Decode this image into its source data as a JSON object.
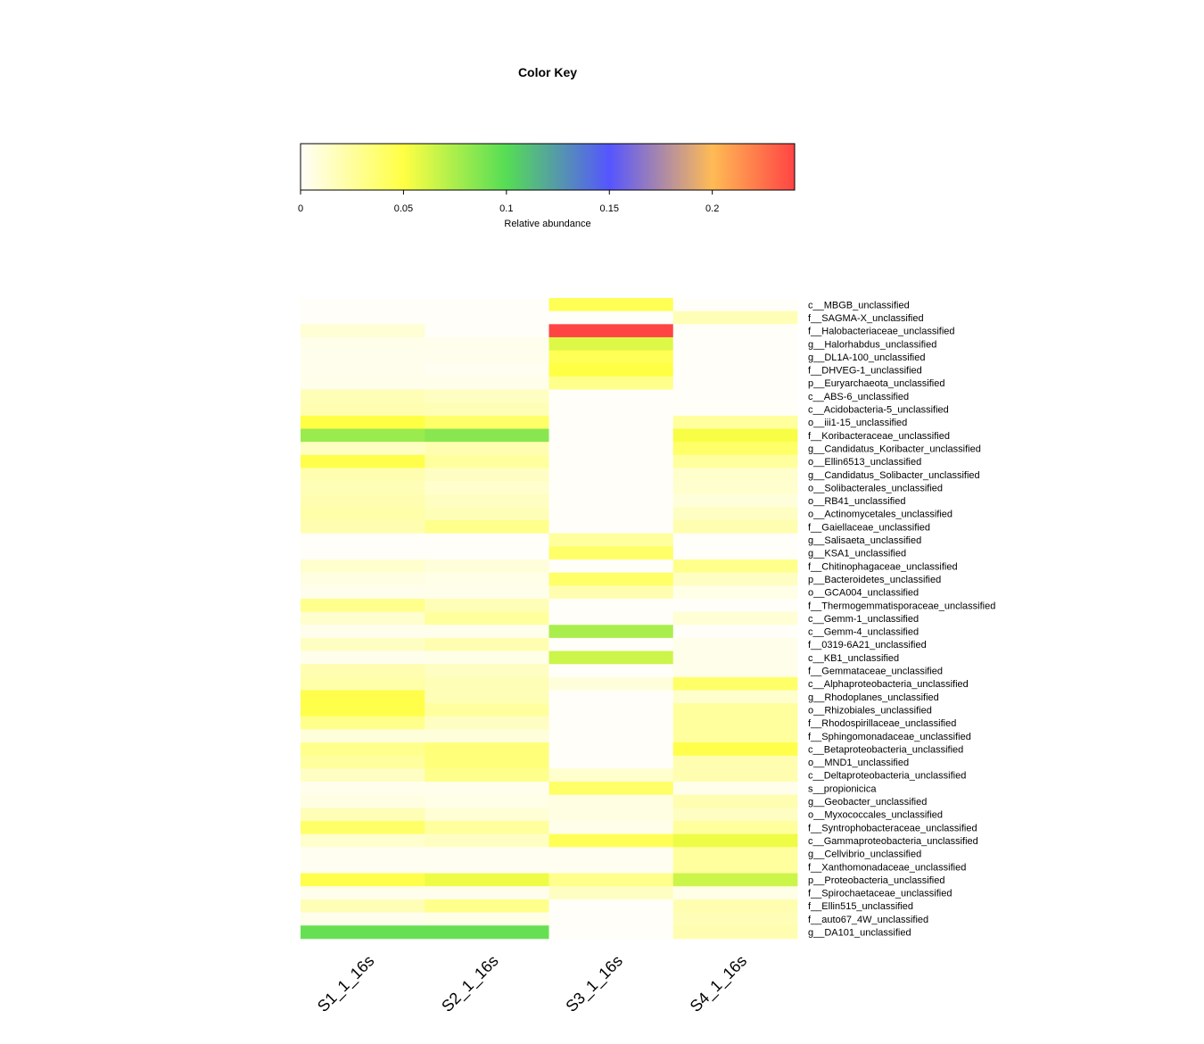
{
  "chart_data": {
    "type": "heatmap",
    "color_key": {
      "title": "Color Key",
      "xlabel": "Relative abundance",
      "range": [
        0,
        0.24
      ],
      "ticks": [
        "0",
        "0.05",
        "0.1",
        "0.15",
        "0.2"
      ],
      "tick_values": [
        0,
        0.05,
        0.1,
        0.15,
        0.2
      ],
      "color_stops": [
        {
          "value": 0,
          "color": "#fffef8"
        },
        {
          "value": 0.05,
          "color": "#ffff44"
        },
        {
          "value": 0.1,
          "color": "#55dd55"
        },
        {
          "value": 0.15,
          "color": "#5555ff"
        },
        {
          "value": 0.2,
          "color": "#ffbb55"
        },
        {
          "value": 0.24,
          "color": "#ff4444"
        }
      ]
    },
    "columns": [
      "S1_1_16s",
      "S2_1_16s",
      "S3_1_16s",
      "S4_1_16s"
    ],
    "rows": [
      "c__MBGB_unclassified",
      "f__SAGMA-X_unclassified",
      "f__Halobacteriaceae_unclassified",
      "g__Halorhabdus_unclassified",
      "g__DL1A-100_unclassified",
      "f__DHVEG-1_unclassified",
      "p__Euryarchaeota_unclassified",
      "c__ABS-6_unclassified",
      "c__Acidobacteria-5_unclassified",
      "o__iii1-15_unclassified",
      "f__Koribacteraceae_unclassified",
      "g__Candidatus_Koribacter_unclassified",
      "o__Ellin6513_unclassified",
      "g__Candidatus_Solibacter_unclassified",
      "o__Solibacterales_unclassified",
      "o__RB41_unclassified",
      "o__Actinomycetales_unclassified",
      "f__Gaiellaceae_unclassified",
      "g__Salisaeta_unclassified",
      "g__KSA1_unclassified",
      "f__Chitinophagaceae_unclassified",
      "p__Bacteroidetes_unclassified",
      "o__GCA004_unclassified",
      "f__Thermogemmatisporaceae_unclassified",
      "c__Gemm-1_unclassified",
      "c__Gemm-4_unclassified",
      "f__0319-6A21_unclassified",
      "c__KB1_unclassified",
      "f__Gemmataceae_unclassified",
      "c__Alphaproteobacteria_unclassified",
      "g__Rhodoplanes_unclassified",
      "o__Rhizobiales_unclassified",
      "f__Rhodospirillaceae_unclassified",
      "f__Sphingomonadaceae_unclassified",
      "c__Betaproteobacteria_unclassified",
      "o__MND1_unclassified",
      "c__Deltaproteobacteria_unclassified",
      "s__propionicica",
      "g__Geobacter_unclassified",
      "o__Myxococcales_unclassified",
      "f__Syntrophobacteraceae_unclassified",
      "c__Gammaproteobacteria_unclassified",
      "g__Cellvibrio_unclassified",
      "f__Xanthomonadaceae_unclassified",
      "p__Proteobacteria_unclassified",
      "f__Spirochaetaceae_unclassified",
      "f__Ellin515_unclassified",
      "f__auto67_4W_unclassified",
      "g__DA101_unclassified"
    ],
    "values": [
      [
        0,
        0,
        0.045,
        0
      ],
      [
        0,
        0,
        0,
        0.018
      ],
      [
        0.01,
        0,
        0.24,
        0
      ],
      [
        0.004,
        0.003,
        0.06,
        0
      ],
      [
        0.003,
        0.003,
        0.045,
        0
      ],
      [
        0.003,
        0.002,
        0.05,
        0
      ],
      [
        0.004,
        0.004,
        0.03,
        0
      ],
      [
        0.018,
        0.015,
        0,
        0
      ],
      [
        0.02,
        0.018,
        0,
        0
      ],
      [
        0.05,
        0.04,
        0,
        0.025
      ],
      [
        0.08,
        0.085,
        0,
        0.052
      ],
      [
        0.015,
        0.02,
        0,
        0.04
      ],
      [
        0.048,
        0.025,
        0,
        0.025
      ],
      [
        0.02,
        0.015,
        0,
        0.012
      ],
      [
        0.018,
        0.012,
        0,
        0.012
      ],
      [
        0.02,
        0.015,
        0,
        0.008
      ],
      [
        0.022,
        0.018,
        0,
        0.015
      ],
      [
        0.02,
        0.03,
        0,
        0.02
      ],
      [
        0,
        0,
        0.025,
        0
      ],
      [
        0,
        0,
        0.04,
        0
      ],
      [
        0.012,
        0.008,
        0,
        0.03
      ],
      [
        0.006,
        0.005,
        0.04,
        0.015
      ],
      [
        0.003,
        0.004,
        0.02,
        0.005
      ],
      [
        0.03,
        0.018,
        0,
        0
      ],
      [
        0.012,
        0.025,
        0,
        0.01
      ],
      [
        0.003,
        0.003,
        0.075,
        0
      ],
      [
        0.015,
        0.02,
        0,
        0.004
      ],
      [
        0.003,
        0.005,
        0.065,
        0.004
      ],
      [
        0.02,
        0.015,
        0,
        0.004
      ],
      [
        0.022,
        0.018,
        0.008,
        0.04
      ],
      [
        0.048,
        0.018,
        0,
        0.012
      ],
      [
        0.048,
        0.025,
        0,
        0.025
      ],
      [
        0.03,
        0.015,
        0,
        0.025
      ],
      [
        0.008,
        0.008,
        0,
        0.025
      ],
      [
        0.03,
        0.035,
        0,
        0.048
      ],
      [
        0.025,
        0.035,
        0,
        0.02
      ],
      [
        0.015,
        0.03,
        0.012,
        0.02
      ],
      [
        0.003,
        0.003,
        0.04,
        0.004
      ],
      [
        0.006,
        0.005,
        0.006,
        0.02
      ],
      [
        0.018,
        0.01,
        0.006,
        0.015
      ],
      [
        0.04,
        0.025,
        0.004,
        0.025
      ],
      [
        0.012,
        0.015,
        0.045,
        0.055
      ],
      [
        0.002,
        0.002,
        0.002,
        0.025
      ],
      [
        0.002,
        0.002,
        0.002,
        0.025
      ],
      [
        0.048,
        0.055,
        0.03,
        0.065
      ],
      [
        0.003,
        0.003,
        0.015,
        0.005
      ],
      [
        0.018,
        0.03,
        0,
        0.02
      ],
      [
        0.003,
        0.005,
        0,
        0.018
      ],
      [
        0.095,
        0.095,
        0,
        0.02
      ]
    ]
  }
}
